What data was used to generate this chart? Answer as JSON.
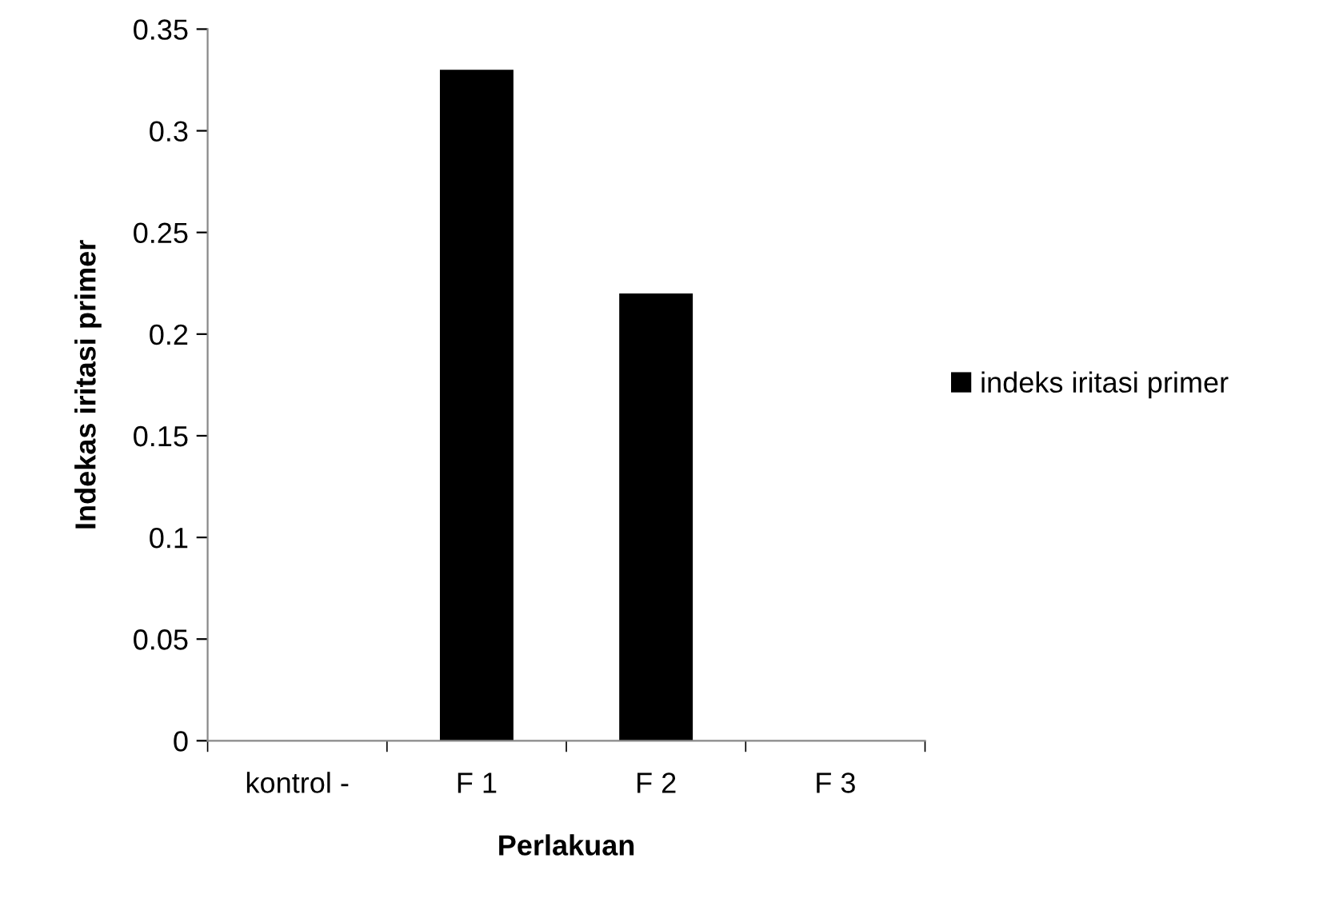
{
  "chart_data": {
    "type": "bar",
    "xlabel": "Perlakuan",
    "ylabel": "Indekas iritasi primer",
    "categories": [
      "kontrol -",
      "F 1",
      "F 2",
      "F 3"
    ],
    "series": [
      {
        "name": "indeks iritasi primer",
        "color": "#000000",
        "values": [
          0,
          0.33,
          0.22,
          0
        ]
      }
    ],
    "ylim": [
      0,
      0.35
    ],
    "yticks": [
      0,
      0.05,
      0.1,
      0.15,
      0.2,
      0.25,
      0.3,
      0.35
    ],
    "grid": false,
    "legend": "right"
  }
}
